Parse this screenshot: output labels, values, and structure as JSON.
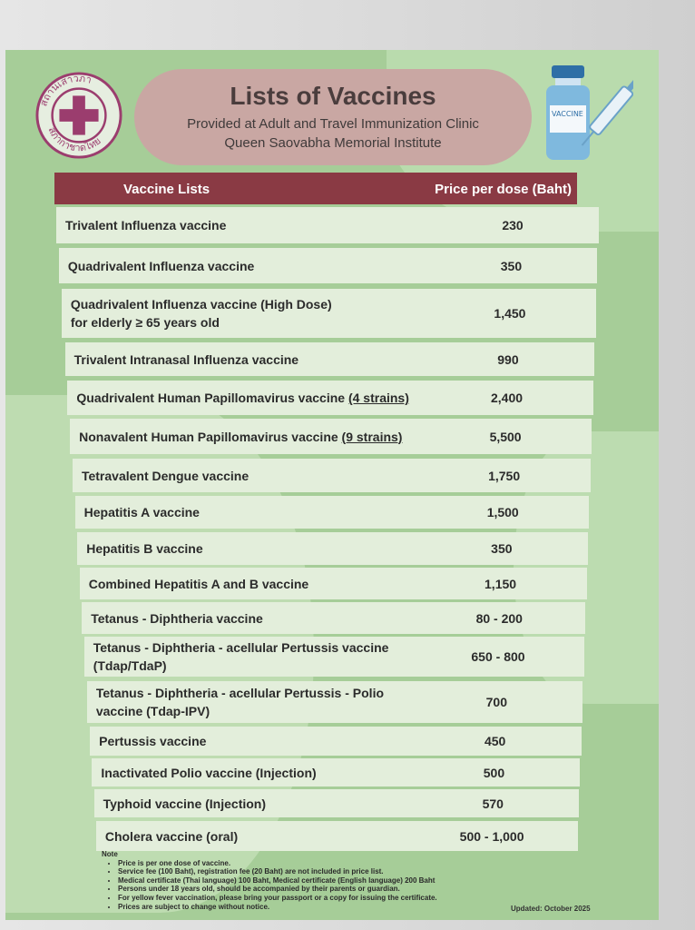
{
  "logo": {
    "text_top": "สถานเสาวภา",
    "text_bottom": "สภากาชาดไทย"
  },
  "title": "Lists of Vaccines",
  "subtitle1": "Provided at Adult and Travel Immunization Clinic",
  "subtitle2": "Queen Saovabha Memorial Institute",
  "vial_label": "VACCINE",
  "colors": {
    "header": "#8a3a44",
    "poster": "#a6cd98",
    "row": "#e3eedb",
    "title_pill": "#c9a7a3"
  },
  "table": {
    "col_name": "Vaccine Lists",
    "col_price": "Price per dose (Baht)",
    "rows": [
      {
        "name": "Trivalent Influenza vaccine",
        "price": "230"
      },
      {
        "name": "Quadrivalent Influenza vaccine",
        "price": "350"
      },
      {
        "name": "Quadrivalent Influenza vaccine (High Dose)",
        "name2": "for elderly ≥ 65 years old",
        "price": "1,450"
      },
      {
        "name": "Trivalent Intranasal Influenza vaccine",
        "price": "990"
      },
      {
        "name": "Quadrivalent Human Papillomavirus vaccine",
        "under": "(4 strains)",
        "price": "2,400"
      },
      {
        "name": "Nonavalent Human Papillomavirus vaccine",
        "under": "(9 strains)",
        "price": "5,500"
      },
      {
        "name": "Tetravalent Dengue vaccine",
        "price": "1,750"
      },
      {
        "name": "Hepatitis A vaccine",
        "price": "1,500"
      },
      {
        "name": "Hepatitis B vaccine",
        "price": "350"
      },
      {
        "name": "Combined Hepatitis A and B vaccine",
        "price": "1,150"
      },
      {
        "name": "Tetanus - Diphtheria vaccine",
        "price": "80 - 200"
      },
      {
        "name": "Tetanus - Diphtheria - acellular Pertussis vaccine",
        "name2": "(Tdap/TdaP)",
        "price": "650 - 800"
      },
      {
        "name": "Tetanus - Diphtheria - acellular Pertussis - Polio",
        "name2": "vaccine (Tdap-IPV)",
        "price": "700"
      },
      {
        "name": "Pertussis vaccine",
        "price": "450"
      },
      {
        "name": "Inactivated Polio vaccine (Injection)",
        "price": "500"
      },
      {
        "name": "Typhoid vaccine (Injection)",
        "price": "570"
      },
      {
        "name": "Cholera vaccine (oral)",
        "price": "500 - 1,000"
      }
    ]
  },
  "note": {
    "title": "Note",
    "items": [
      "Price is per one dose of vaccine.",
      "Service fee (100 Baht), registration fee (20 Baht) are not included in price list.",
      "Medical certificate (Thai language) 100 Baht, Medical certificate (English language) 200 Baht",
      "Persons under 18 years old, should be accompanied by their parents or guardian.",
      "For yellow fever vaccination, please bring your passport or a copy for issuing the certificate.",
      "Prices are subject to change without notice."
    ]
  },
  "updated": "Updated: October 2025"
}
